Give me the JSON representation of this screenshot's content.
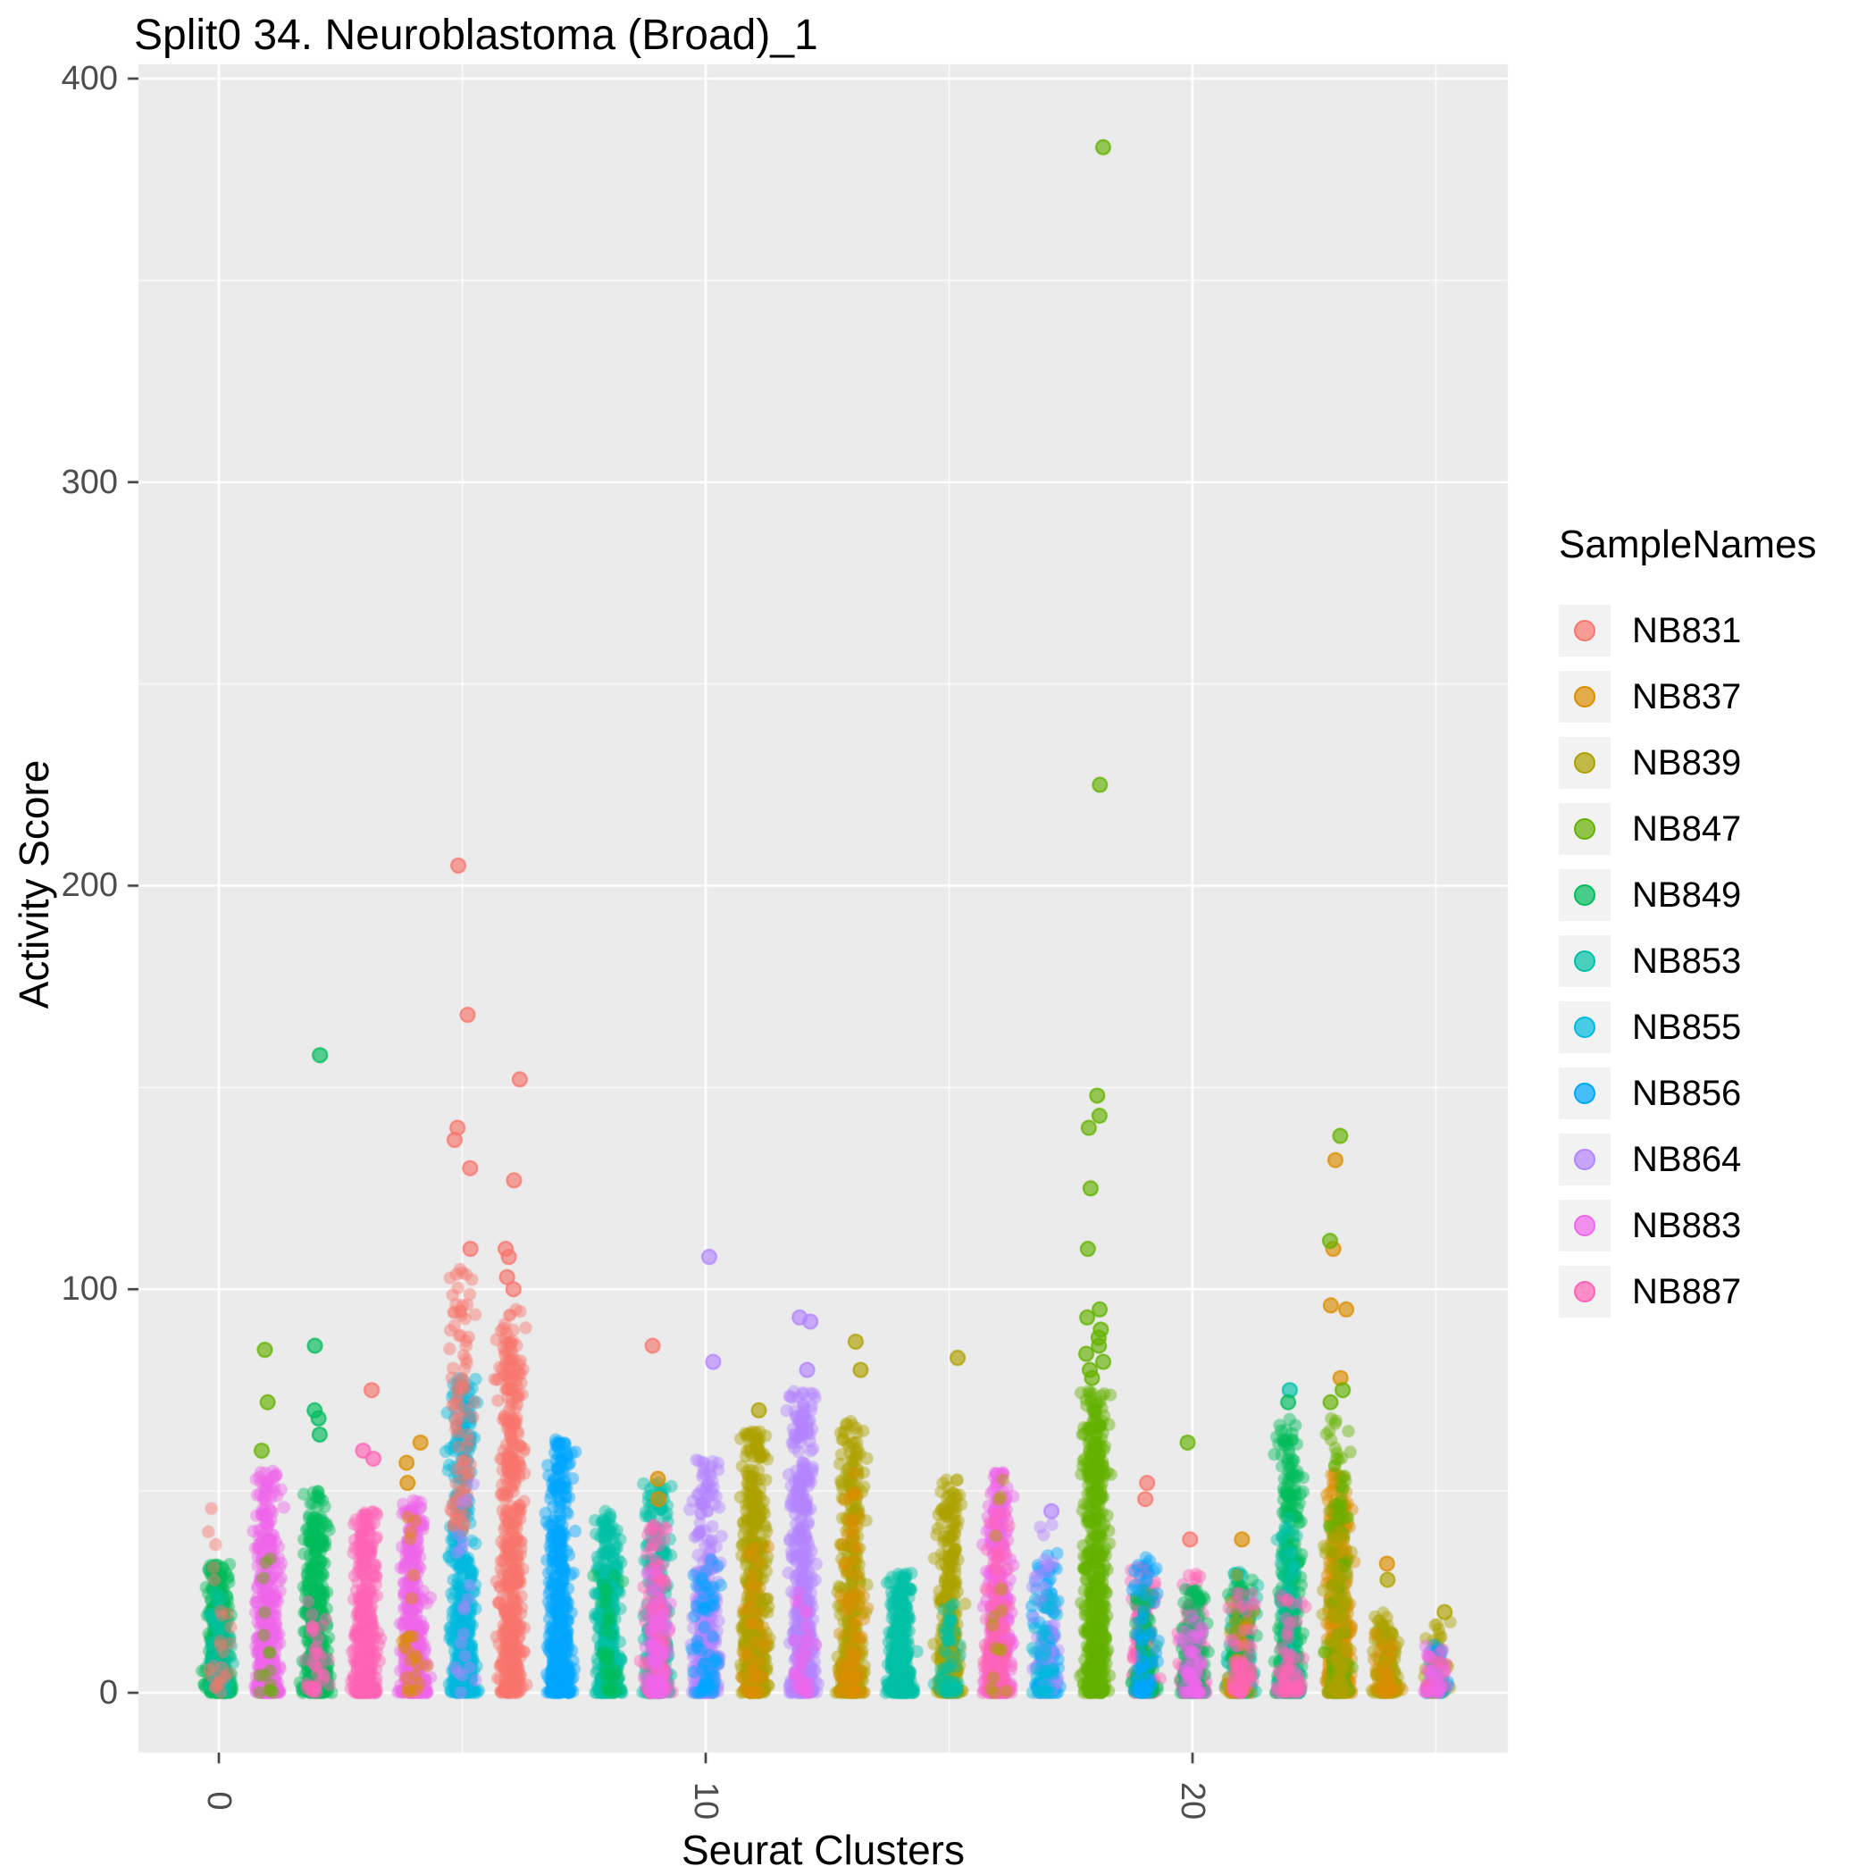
{
  "chart_data": {
    "type": "scatter",
    "subtype": "jitter-strips",
    "title": "Split0 34. Neuroblastoma (Broad)_1",
    "xlabel": "Seurat Clusters",
    "ylabel": "Activity Score",
    "legend_title": "SampleNames",
    "xlim": [
      -1.6,
      26.5
    ],
    "ylim": [
      0,
      400
    ],
    "grid": "on",
    "legend_position": "right",
    "panel_background": "#EBEBEB",
    "x_ticks": [
      {
        "value": 0,
        "label": "0"
      },
      {
        "value": 10,
        "label": "10"
      },
      {
        "value": 20,
        "label": "20"
      }
    ],
    "y_ticks": [
      {
        "value": 0,
        "label": "0"
      },
      {
        "value": 100,
        "label": "100"
      },
      {
        "value": 200,
        "label": "200"
      },
      {
        "value": 300,
        "label": "300"
      },
      {
        "value": 400,
        "label": "400"
      }
    ],
    "samples": [
      {
        "name": "NB831",
        "color": "#F8766D"
      },
      {
        "name": "NB837",
        "color": "#DB8E00"
      },
      {
        "name": "NB839",
        "color": "#AEA200"
      },
      {
        "name": "NB847",
        "color": "#64B200"
      },
      {
        "name": "NB849",
        "color": "#00BD5C"
      },
      {
        "name": "NB853",
        "color": "#00C1A7"
      },
      {
        "name": "NB855",
        "color": "#00BADE"
      },
      {
        "name": "NB856",
        "color": "#00A6FF"
      },
      {
        "name": "NB864",
        "color": "#B385FF"
      },
      {
        "name": "NB883",
        "color": "#EF67EB"
      },
      {
        "name": "NB887",
        "color": "#FF63B6"
      }
    ],
    "strips": [
      {
        "cluster": 0,
        "groups": [
          {
            "sample": "NB849",
            "count": 380,
            "max": 32
          },
          {
            "sample": "NB853",
            "count": 60,
            "max": 25
          },
          {
            "sample": "NB831",
            "count": 25,
            "max": 47
          }
        ],
        "outliers": []
      },
      {
        "cluster": 1,
        "groups": [
          {
            "sample": "NB883",
            "count": 420,
            "max": 55
          },
          {
            "sample": "NB847",
            "count": 15,
            "max": 50
          }
        ],
        "outliers": [
          {
            "sample": "NB847",
            "values": [
              60,
              72,
              85
            ]
          }
        ]
      },
      {
        "cluster": 2,
        "groups": [
          {
            "sample": "NB849",
            "count": 400,
            "max": 50
          },
          {
            "sample": "NB887",
            "count": 40,
            "max": 25
          }
        ],
        "outliers": [
          {
            "sample": "NB849",
            "values": [
              64,
              68,
              70,
              86,
              158
            ]
          }
        ]
      },
      {
        "cluster": 3,
        "groups": [
          {
            "sample": "NB887",
            "count": 380,
            "max": 45
          }
        ],
        "outliers": [
          {
            "sample": "NB831",
            "values": [
              75
            ]
          },
          {
            "sample": "NB887",
            "values": [
              58,
              60
            ]
          }
        ]
      },
      {
        "cluster": 4,
        "groups": [
          {
            "sample": "NB883",
            "count": 380,
            "max": 48
          },
          {
            "sample": "NB837",
            "count": 25,
            "max": 45
          }
        ],
        "outliers": [
          {
            "sample": "NB837",
            "values": [
              52,
              57,
              62
            ]
          }
        ]
      },
      {
        "cluster": 5,
        "groups": [
          {
            "sample": "NB855",
            "count": 450,
            "max": 78
          },
          {
            "sample": "NB831",
            "count": 90,
            "min": 40,
            "max": 105,
            "exp": 1.2
          },
          {
            "sample": "NB864",
            "count": 20,
            "max": 55
          }
        ],
        "outliers": [
          {
            "sample": "NB831",
            "values": [
              110,
              130,
              137,
              140,
              168,
              205
            ]
          }
        ]
      },
      {
        "cluster": 6,
        "groups": [
          {
            "sample": "NB831",
            "count": 500,
            "max": 95,
            "exp": 1.7
          }
        ],
        "outliers": [
          {
            "sample": "NB831",
            "values": [
              100,
              103,
              108,
              110,
              127,
              152
            ]
          }
        ]
      },
      {
        "cluster": 7,
        "groups": [
          {
            "sample": "NB856",
            "count": 420,
            "max": 63
          }
        ],
        "outliers": []
      },
      {
        "cluster": 8,
        "groups": [
          {
            "sample": "NB853",
            "count": 350,
            "max": 45
          },
          {
            "sample": "NB849",
            "count": 40,
            "max": 30
          }
        ],
        "outliers": []
      },
      {
        "cluster": 9,
        "groups": [
          {
            "sample": "NB853",
            "count": 300,
            "max": 52
          },
          {
            "sample": "NB887",
            "count": 150,
            "max": 42
          },
          {
            "sample": "NB883",
            "count": 60,
            "max": 30
          }
        ],
        "outliers": [
          {
            "sample": "NB831",
            "values": [
              86
            ]
          },
          {
            "sample": "NB837",
            "values": [
              48,
              53
            ]
          }
        ]
      },
      {
        "cluster": 10,
        "groups": [
          {
            "sample": "NB864",
            "count": 380,
            "max": 58
          },
          {
            "sample": "NB856",
            "count": 60,
            "max": 35
          }
        ],
        "outliers": [
          {
            "sample": "NB864",
            "values": [
              82,
              108
            ]
          }
        ]
      },
      {
        "cluster": 11,
        "groups": [
          {
            "sample": "NB839",
            "count": 500,
            "max": 65,
            "exp": 1.8
          },
          {
            "sample": "NB837",
            "count": 40,
            "max": 40
          }
        ],
        "outliers": [
          {
            "sample": "NB839",
            "values": [
              70
            ]
          }
        ]
      },
      {
        "cluster": 12,
        "groups": [
          {
            "sample": "NB864",
            "count": 450,
            "max": 75,
            "exp": 1.8
          },
          {
            "sample": "NB883",
            "count": 30,
            "max": 25
          }
        ],
        "outliers": [
          {
            "sample": "NB864",
            "values": [
              80,
              92,
              93
            ]
          }
        ]
      },
      {
        "cluster": 13,
        "groups": [
          {
            "sample": "NB839",
            "count": 380,
            "max": 68
          },
          {
            "sample": "NB837",
            "count": 80,
            "max": 55
          }
        ],
        "outliers": [
          {
            "sample": "NB839",
            "values": [
              80,
              87
            ]
          }
        ]
      },
      {
        "cluster": 14,
        "groups": [
          {
            "sample": "NB853",
            "count": 300,
            "max": 30
          }
        ],
        "outliers": []
      },
      {
        "cluster": 15,
        "groups": [
          {
            "sample": "NB839",
            "count": 320,
            "max": 53
          },
          {
            "sample": "NB853",
            "count": 50,
            "max": 22
          }
        ],
        "outliers": [
          {
            "sample": "NB839",
            "values": [
              83
            ]
          }
        ]
      },
      {
        "cluster": 16,
        "groups": [
          {
            "sample": "NB883",
            "count": 350,
            "max": 55
          },
          {
            "sample": "NB887",
            "count": 150,
            "max": 45
          },
          {
            "sample": "NB839",
            "count": 15,
            "max": 55
          }
        ],
        "outliers": []
      },
      {
        "cluster": 17,
        "groups": [
          {
            "sample": "NB856",
            "count": 120,
            "max": 35
          },
          {
            "sample": "NB864",
            "count": 60,
            "max": 42
          },
          {
            "sample": "NB855",
            "count": 40,
            "max": 25
          }
        ],
        "outliers": [
          {
            "sample": "NB864",
            "values": [
              45
            ]
          }
        ]
      },
      {
        "cluster": 18,
        "groups": [
          {
            "sample": "NB847",
            "count": 550,
            "max": 75,
            "exp": 1.8
          }
        ],
        "outliers": [
          {
            "sample": "NB847",
            "values": [
              78,
              80,
              82,
              84,
              86,
              88,
              90,
              93,
              95,
              110,
              125,
              140,
              143,
              148,
              225,
              383
            ]
          }
        ]
      },
      {
        "cluster": 19,
        "groups": [
          {
            "sample": "NB887",
            "count": 150,
            "max": 32
          },
          {
            "sample": "NB849",
            "count": 100,
            "max": 26
          },
          {
            "sample": "NB856",
            "count": 60,
            "max": 35
          }
        ],
        "outliers": [
          {
            "sample": "NB831",
            "values": [
              48,
              52
            ]
          }
        ]
      },
      {
        "cluster": 20,
        "groups": [
          {
            "sample": "NB887",
            "count": 150,
            "max": 30
          },
          {
            "sample": "NB849",
            "count": 120,
            "max": 26
          },
          {
            "sample": "NB883",
            "count": 60,
            "max": 20
          }
        ],
        "outliers": [
          {
            "sample": "NB831",
            "values": [
              38
            ]
          },
          {
            "sample": "NB847",
            "values": [
              62
            ]
          }
        ]
      },
      {
        "cluster": 21,
        "groups": [
          {
            "sample": "NB853",
            "count": 150,
            "max": 30
          },
          {
            "sample": "NB849",
            "count": 100,
            "max": 28
          },
          {
            "sample": "NB837",
            "count": 40,
            "max": 30
          },
          {
            "sample": "NB887",
            "count": 60,
            "max": 25
          }
        ],
        "outliers": [
          {
            "sample": "NB837",
            "values": [
              38
            ]
          }
        ]
      },
      {
        "cluster": 22,
        "groups": [
          {
            "sample": "NB849",
            "count": 350,
            "max": 68
          },
          {
            "sample": "NB853",
            "count": 80,
            "max": 45
          },
          {
            "sample": "NB887",
            "count": 60,
            "max": 25
          }
        ],
        "outliers": [
          {
            "sample": "NB853",
            "values": [
              75
            ]
          },
          {
            "sample": "NB849",
            "values": [
              72
            ]
          }
        ]
      },
      {
        "cluster": 23,
        "groups": [
          {
            "sample": "NB837",
            "count": 400,
            "max": 55
          },
          {
            "sample": "NB847",
            "count": 120,
            "max": 70
          },
          {
            "sample": "NB839",
            "count": 80,
            "max": 40
          }
        ],
        "outliers": [
          {
            "sample": "NB837",
            "values": [
              78,
              95,
              96,
              110,
              132
            ]
          },
          {
            "sample": "NB847",
            "values": [
              72,
              75,
              112,
              138
            ]
          }
        ]
      },
      {
        "cluster": 24,
        "groups": [
          {
            "sample": "NB839",
            "count": 150,
            "max": 20
          },
          {
            "sample": "NB837",
            "count": 30,
            "max": 15
          }
        ],
        "outliers": [
          {
            "sample": "NB837",
            "values": [
              32
            ]
          },
          {
            "sample": "NB839",
            "values": [
              28
            ]
          }
        ]
      },
      {
        "cluster": 25,
        "groups": [
          {
            "sample": "NB839",
            "count": 60,
            "max": 18
          },
          {
            "sample": "NB856",
            "count": 30,
            "max": 12
          },
          {
            "sample": "NB887",
            "count": 25,
            "max": 10
          },
          {
            "sample": "NB883",
            "count": 20,
            "max": 12
          }
        ],
        "outliers": [
          {
            "sample": "NB839",
            "values": [
              20
            ]
          }
        ]
      }
    ]
  }
}
